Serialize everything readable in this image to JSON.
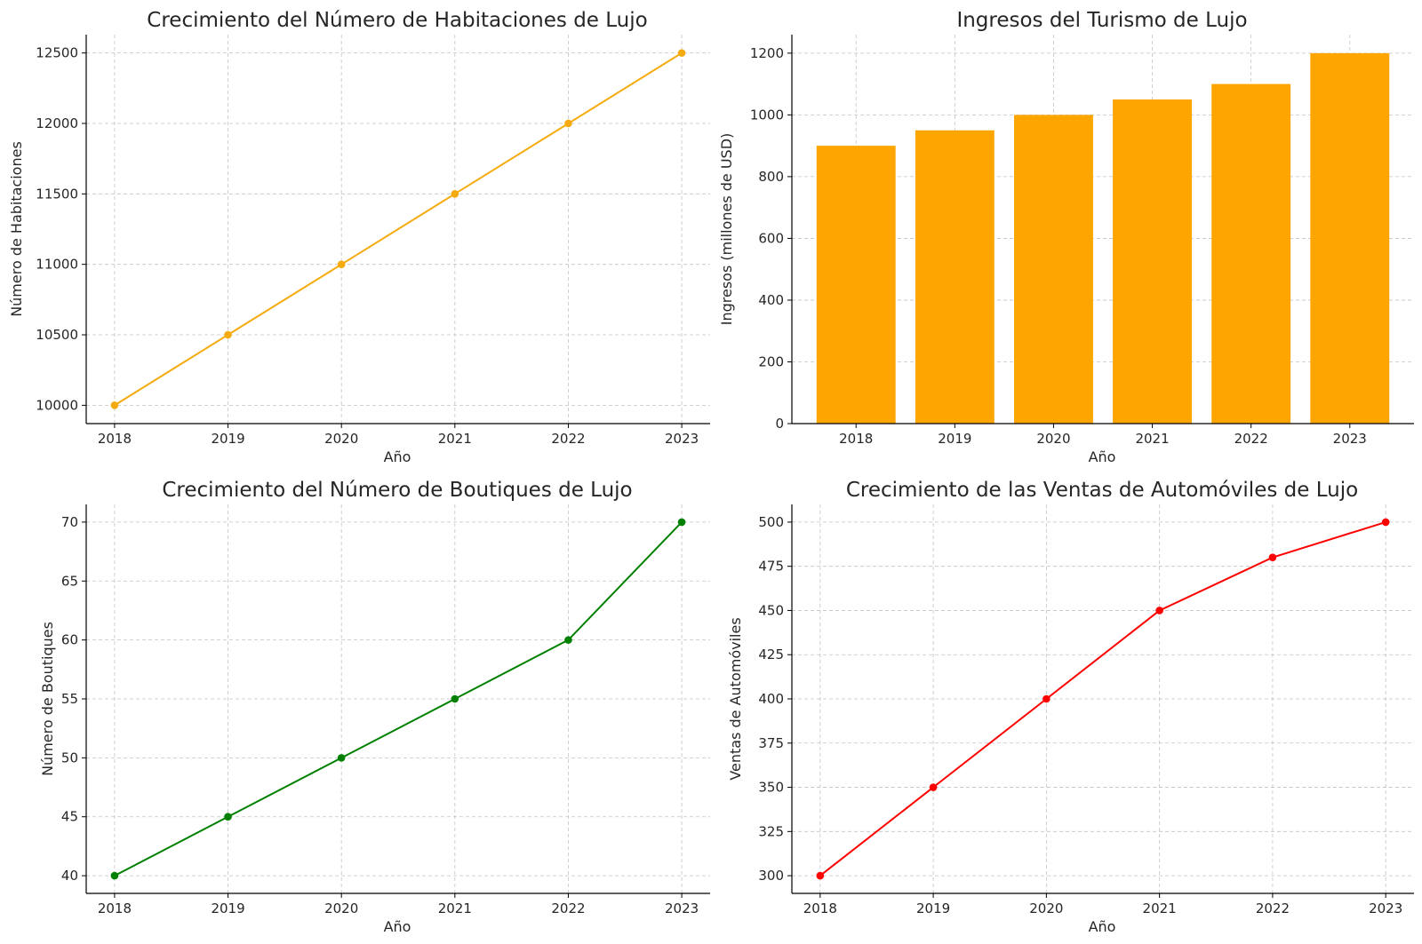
{
  "chart_data": [
    {
      "type": "line",
      "title": "Crecimiento del Número de Habitaciones de Lujo",
      "xlabel": "Año",
      "ylabel": "Número de Habitaciones",
      "categories": [
        "2018",
        "2019",
        "2020",
        "2021",
        "2022",
        "2023"
      ],
      "series": [
        {
          "values": [
            10000,
            10500,
            11000,
            11500,
            12000,
            12500
          ],
          "color": "#f5ab0d"
        }
      ],
      "ylim": [
        9870,
        12630
      ],
      "yticks": [
        10000,
        10500,
        11000,
        11500,
        12000,
        12500
      ],
      "grid": true
    },
    {
      "type": "bar",
      "title": "Ingresos del Turismo de Lujo",
      "xlabel": "Año",
      "ylabel": "Ingresos (millones de USD)",
      "categories": [
        "2018",
        "2019",
        "2020",
        "2021",
        "2022",
        "2023"
      ],
      "series": [
        {
          "values": [
            900,
            950,
            1000,
            1050,
            1100,
            1200
          ],
          "color": "#ffa500"
        }
      ],
      "ylim": [
        0,
        1260
      ],
      "yticks": [
        0,
        200,
        400,
        600,
        800,
        1000,
        1200
      ],
      "grid": true
    },
    {
      "type": "line",
      "title": "Crecimiento del Número de Boutiques de Lujo",
      "xlabel": "Año",
      "ylabel": "Número de Boutiques",
      "categories": [
        "2018",
        "2019",
        "2020",
        "2021",
        "2022",
        "2023"
      ],
      "series": [
        {
          "values": [
            40,
            45,
            50,
            55,
            60,
            70
          ],
          "color": "#008000"
        }
      ],
      "ylim": [
        38.5,
        71.5
      ],
      "yticks": [
        40,
        45,
        50,
        55,
        60,
        65,
        70
      ],
      "grid": true
    },
    {
      "type": "line",
      "title": "Crecimiento de las Ventas de Automóviles de Lujo",
      "xlabel": "Año",
      "ylabel": "Ventas de Automóviles",
      "categories": [
        "2018",
        "2019",
        "2020",
        "2021",
        "2022",
        "2023"
      ],
      "series": [
        {
          "values": [
            300,
            350,
            400,
            450,
            480,
            500
          ],
          "color": "#ff0000"
        }
      ],
      "ylim": [
        290,
        510
      ],
      "yticks": [
        300,
        325,
        350,
        375,
        400,
        425,
        450,
        475,
        500
      ],
      "grid": true
    }
  ]
}
